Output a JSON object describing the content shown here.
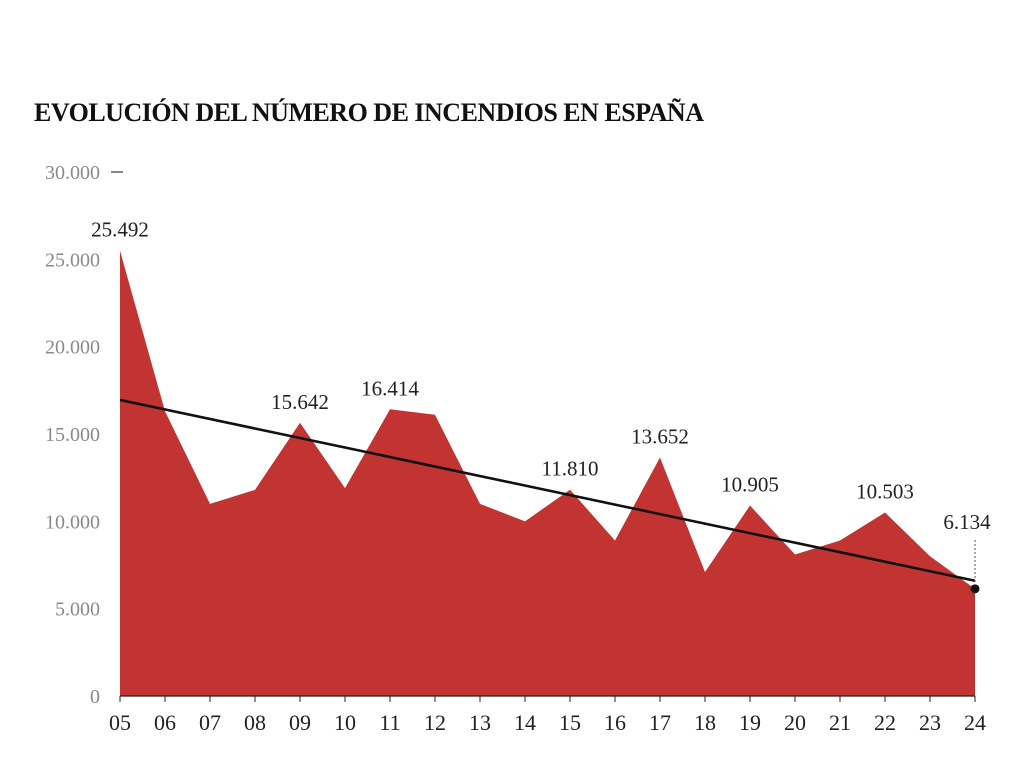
{
  "chart_data": {
    "type": "area",
    "title": "EVOLUCIÓN DEL NÚMERO DE INCENDIOS EN ESPAÑA",
    "x": [
      "05",
      "06",
      "07",
      "08",
      "09",
      "10",
      "11",
      "12",
      "13",
      "14",
      "15",
      "16",
      "17",
      "18",
      "19",
      "20",
      "21",
      "22",
      "23",
      "24"
    ],
    "values": [
      25492,
      16300,
      11000,
      11800,
      15642,
      11900,
      16414,
      16100,
      11000,
      10000,
      11810,
      8900,
      13652,
      7100,
      10905,
      8100,
      8900,
      10503,
      8000,
      6134
    ],
    "ylim": [
      0,
      30000
    ],
    "yticks": [
      {
        "value": 0,
        "label": "0"
      },
      {
        "value": 5000,
        "label": "5.000"
      },
      {
        "value": 10000,
        "label": "10.000"
      },
      {
        "value": 15000,
        "label": "15.000"
      },
      {
        "value": 20000,
        "label": "20.000"
      },
      {
        "value": 25000,
        "label": "25.000"
      },
      {
        "value": 30000,
        "label": "30.000"
      }
    ],
    "data_labels": [
      {
        "index": 0,
        "text": "25.492"
      },
      {
        "index": 4,
        "text": "15.642"
      },
      {
        "index": 6,
        "text": "16.414"
      },
      {
        "index": 10,
        "text": "11.810"
      },
      {
        "index": 12,
        "text": "13.652"
      },
      {
        "index": 14,
        "text": "10.905"
      },
      {
        "index": 17,
        "text": "10.503"
      },
      {
        "index": 19,
        "text": "6.134"
      }
    ],
    "trendline": {
      "start": 16950,
      "end": 6600
    },
    "fill_color": "#c23431",
    "trend_color": "#111111",
    "grid": false
  }
}
